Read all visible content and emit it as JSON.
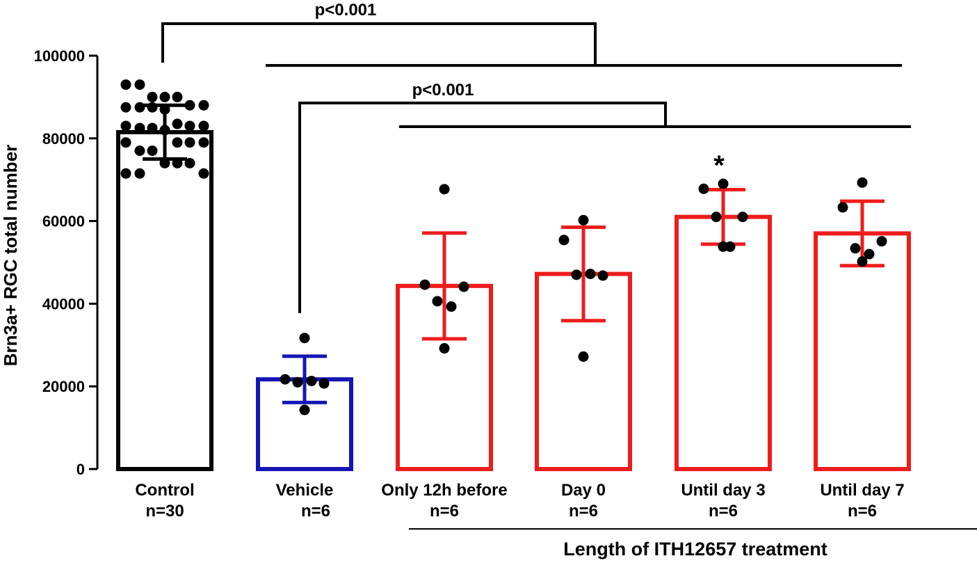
{
  "chart_data": {
    "type": "bar",
    "ylabel": "Brn3a+  RGC total number",
    "ylim": [
      0,
      100000
    ],
    "yticks": [
      0,
      20000,
      40000,
      60000,
      80000,
      100000
    ],
    "group_label": "Length of ITH12657 treatment",
    "categories": [
      {
        "name": "Control",
        "n": "n=30",
        "mean": 81500,
        "sd": 6500,
        "color": "#000000",
        "points": [
          93000,
          93000,
          90000,
          90000,
          90000,
          88000,
          88000,
          87500,
          87500,
          87500,
          87000,
          83500,
          83000,
          83000,
          83000,
          82500,
          82500,
          82000,
          79000,
          79000,
          79000,
          79000,
          77000,
          77000,
          74000,
          74000,
          74000,
          71500,
          71500,
          71500
        ]
      },
      {
        "name": "Vehicle",
        "n": "n=6",
        "mean": 21700,
        "sd": 5600,
        "color": "#1515b5",
        "points": [
          31700,
          21700,
          20700,
          21000,
          21300,
          14300
        ]
      },
      {
        "name": "Only 12h before",
        "n": "n=6",
        "mean": 44300,
        "sd": 12800,
        "color": "#ee1c1c",
        "points": [
          67700,
          44600,
          44100,
          40600,
          39300,
          29200
        ]
      },
      {
        "name": "Day 0",
        "n": "n=6",
        "mean": 47200,
        "sd": 11300,
        "color": "#ee1c1c",
        "points": [
          60200,
          55400,
          46800,
          47000,
          47200,
          27200
        ]
      },
      {
        "name": "Until day 3",
        "n": "n=6",
        "mean": 61000,
        "sd": 6600,
        "color": "#ee1c1c",
        "points": [
          69000,
          67800,
          61000,
          61000,
          53800,
          53800
        ]
      },
      {
        "name": "Until day 7",
        "n": "n=6",
        "mean": 57000,
        "sd": 7800,
        "color": "#ee1c1c",
        "points": [
          69300,
          63300,
          55100,
          53400,
          52000,
          50200
        ]
      }
    ],
    "annotations": {
      "sig1": "p<0.001",
      "sig2": "p<0.001",
      "star": "*"
    }
  }
}
